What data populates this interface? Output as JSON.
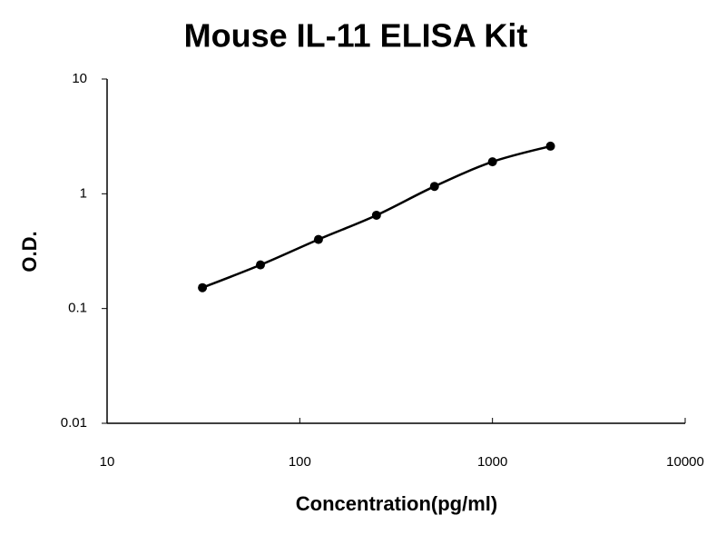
{
  "chart_data": {
    "type": "scatter",
    "title": "Mouse IL-11 ELISA Kit",
    "x_label": "Concentration(pg/ml)",
    "y_label": "O.D.",
    "log_x": true,
    "log_y": true,
    "grid": false,
    "smooth_line": true,
    "color": "#000000",
    "x": [
      31.25,
      62.5,
      125,
      250,
      500,
      1000,
      2000
    ],
    "values": [
      0.152,
      0.24,
      0.4,
      0.65,
      1.16,
      1.9,
      2.6
    ],
    "xlim": [
      10,
      10000
    ],
    "xticks": [
      10,
      100,
      1000,
      10000
    ],
    "ylim": [
      0.01,
      10
    ],
    "yticks": [
      0.01,
      0.1,
      1,
      10
    ]
  }
}
